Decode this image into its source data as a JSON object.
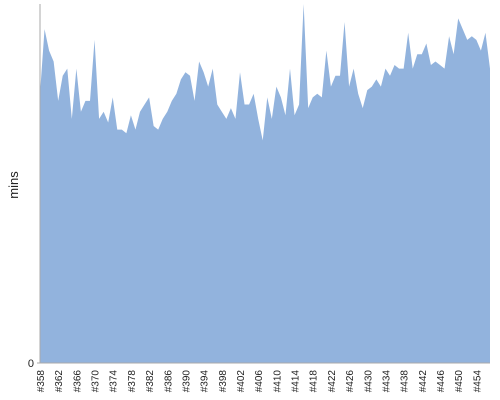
{
  "chart_data": {
    "type": "area",
    "y_label": "mins",
    "categories": [
      "#358",
      null,
      null,
      null,
      "#362",
      null,
      null,
      null,
      "#366",
      null,
      null,
      null,
      "#370",
      null,
      null,
      null,
      "#374",
      null,
      null,
      null,
      "#378",
      null,
      null,
      null,
      "#382",
      null,
      null,
      null,
      "#386",
      null,
      null,
      null,
      "#390",
      null,
      null,
      null,
      "#394",
      null,
      null,
      null,
      "#398",
      null,
      null,
      null,
      "#402",
      null,
      null,
      null,
      "#406",
      null,
      null,
      null,
      "#410",
      null,
      null,
      null,
      "#414",
      null,
      null,
      null,
      "#418",
      null,
      null,
      null,
      "#422",
      null,
      null,
      null,
      "#426",
      null,
      null,
      null,
      "#430",
      null,
      null,
      null,
      "#434",
      null,
      null,
      null,
      "#438",
      null,
      null,
      null,
      "#442",
      null,
      null,
      null,
      "#446",
      null,
      null,
      null,
      "#450",
      null,
      null,
      null,
      "#454",
      null,
      null,
      null
    ],
    "values": [
      75,
      93,
      87,
      84,
      73,
      80,
      82,
      68,
      82,
      70,
      73,
      73,
      90,
      68,
      70,
      67,
      74,
      65,
      65,
      64,
      69,
      65,
      70,
      72,
      74,
      66,
      65,
      68,
      70,
      73,
      75,
      79,
      81,
      80,
      73,
      84,
      81,
      77,
      82,
      72,
      70,
      68,
      71,
      68,
      81,
      72,
      72,
      75,
      68,
      62,
      74,
      68,
      77,
      74,
      69,
      82,
      69,
      72,
      100,
      71,
      74,
      75,
      74,
      87,
      77,
      80,
      80,
      95,
      77,
      82,
      75,
      71,
      76,
      77,
      79,
      77,
      82,
      80,
      83,
      82,
      82,
      92,
      82,
      86,
      86,
      89,
      83,
      84,
      83,
      82,
      91,
      86,
      96,
      93,
      90,
      91,
      90,
      87,
      92,
      82
    ],
    "color": "#92b3dd",
    "ylim": [
      0,
      100
    ],
    "yticks": [
      0
    ]
  }
}
